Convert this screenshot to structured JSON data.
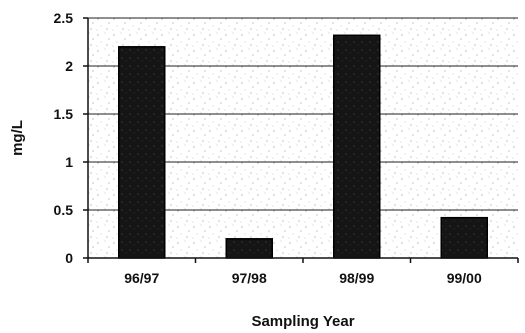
{
  "chart_data": {
    "type": "bar",
    "categories": [
      "96/97",
      "97/98",
      "98/99",
      "99/00"
    ],
    "values": [
      2.2,
      0.2,
      2.32,
      0.42
    ],
    "xlabel": "Sampling Year",
    "ylabel": "mg/L",
    "ylim": [
      0,
      2.5
    ],
    "yticks": [
      0,
      0.5,
      1,
      1.5,
      2,
      2.5
    ],
    "ytick_labels": [
      "0",
      "0.5",
      "1",
      "1.5",
      "2",
      "2.5"
    ],
    "grid": true,
    "legend": "none"
  },
  "colors": {
    "bar_fill": "#151515",
    "plot_background": "#ffffff",
    "gridline": "#222222"
  }
}
